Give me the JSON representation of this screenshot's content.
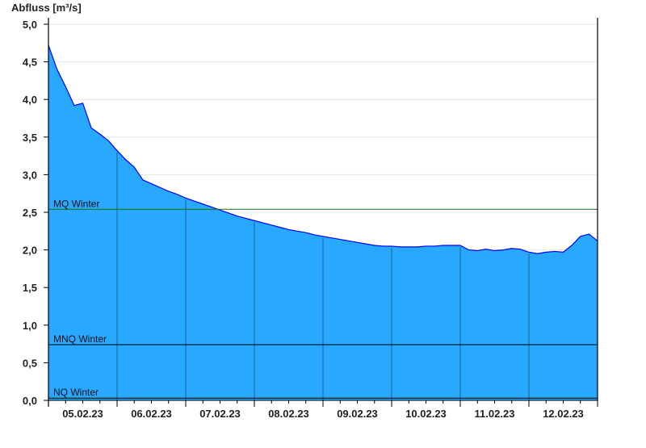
{
  "chart_data": {
    "type": "area",
    "ylabel": "Abfluss [m³/s]",
    "ylim": [
      0,
      5.0
    ],
    "yticks": [
      "0,0",
      "0,5",
      "1,0",
      "1,5",
      "2,0",
      "2,5",
      "3,0",
      "3,5",
      "4,0",
      "4,5",
      "5,0"
    ],
    "xlim": [
      "05.02.23 00:00",
      "13.02.23 00:00"
    ],
    "xtick_labels": [
      "05.02.23",
      "06.02.23",
      "07.02.23",
      "08.02.23",
      "09.02.23",
      "10.02.23",
      "11.02.23",
      "12.02.23"
    ],
    "grid": true,
    "colors": {
      "fill": "#29a8ff",
      "line": "#0000ff",
      "day_lines": "#1f5f8f",
      "mq_line": "#1a6e1a",
      "ref_line": "#000000",
      "grid": "#e6e6e6"
    },
    "reference_lines": [
      {
        "name": "MQ Winter",
        "value": 2.54
      },
      {
        "name": "MNQ Winter",
        "value": 0.74
      },
      {
        "name": "NQ Winter",
        "value": 0.03
      }
    ],
    "series": [
      {
        "interval_hours": 3,
        "start": "05.02.23 00:00",
        "values": [
          4.72,
          4.4,
          4.17,
          3.92,
          3.95,
          3.62,
          3.54,
          3.45,
          3.32,
          3.2,
          3.1,
          2.93,
          2.88,
          2.83,
          2.78,
          2.74,
          2.69,
          2.65,
          2.61,
          2.57,
          2.53,
          2.49,
          2.45,
          2.42,
          2.39,
          2.36,
          2.33,
          2.3,
          2.27,
          2.25,
          2.23,
          2.2,
          2.18,
          2.16,
          2.14,
          2.12,
          2.1,
          2.08,
          2.06,
          2.05,
          2.05,
          2.04,
          2.04,
          2.04,
          2.05,
          2.05,
          2.06,
          2.06,
          2.06,
          2.0,
          1.99,
          2.01,
          1.99,
          2.0,
          2.02,
          2.01,
          1.97,
          1.95,
          1.97,
          1.98,
          1.97,
          2.06,
          2.18,
          2.21,
          2.12
        ]
      }
    ]
  }
}
